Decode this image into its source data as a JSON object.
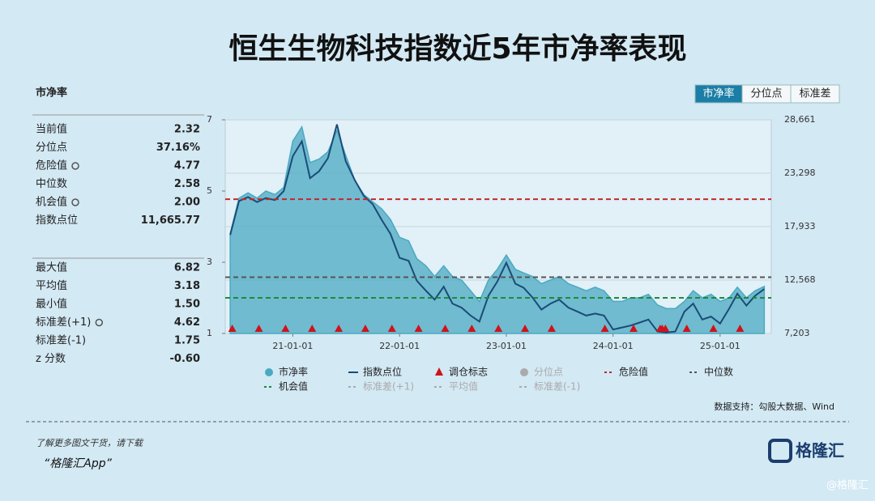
{
  "title": "恒生生物科技指数近5年市净率表现",
  "tabs": [
    {
      "label": "市净率",
      "active": true
    },
    {
      "label": "分位点",
      "active": false
    },
    {
      "label": "标准差",
      "active": false
    }
  ],
  "panel": {
    "title": "市净率",
    "groups": [
      [
        {
          "label": "当前值",
          "value": "2.32"
        },
        {
          "label": "分位点",
          "value": "37.16%"
        },
        {
          "label": "危险值",
          "value": "4.77",
          "icon": true
        },
        {
          "label": "中位数",
          "value": "2.58"
        },
        {
          "label": "机会值",
          "value": "2.00",
          "icon": true
        },
        {
          "label": "指数点位",
          "value": "11,665.77"
        }
      ],
      [
        {
          "label": "最大值",
          "value": "6.82"
        },
        {
          "label": "平均值",
          "value": "3.18"
        },
        {
          "label": "最小值",
          "value": "1.50"
        },
        {
          "label": "标准差(+1)",
          "value": "4.62",
          "icon": true
        },
        {
          "label": "标准差(-1)",
          "value": "1.75"
        },
        {
          "label": "z 分数",
          "value": "-0.60"
        }
      ]
    ]
  },
  "chart_data": {
    "type": "line",
    "x": [
      "20-06-01",
      "20-07-01",
      "20-08-01",
      "20-09-01",
      "20-10-01",
      "20-11-01",
      "20-12-01",
      "21-01-01",
      "21-02-01",
      "21-03-01",
      "21-04-01",
      "21-05-01",
      "21-06-01",
      "21-07-01",
      "21-08-01",
      "21-09-01",
      "21-10-01",
      "21-11-01",
      "21-12-01",
      "22-01-01",
      "22-02-01",
      "22-03-01",
      "22-04-01",
      "22-05-01",
      "22-06-01",
      "22-07-01",
      "22-08-01",
      "22-09-01",
      "22-10-01",
      "22-11-01",
      "22-12-01",
      "23-01-01",
      "23-02-01",
      "23-03-01",
      "23-04-01",
      "23-05-01",
      "23-06-01",
      "23-07-01",
      "23-08-01",
      "23-09-01",
      "23-10-01",
      "23-11-01",
      "23-12-01",
      "24-01-01",
      "24-02-01",
      "24-03-01",
      "24-04-01",
      "24-05-01",
      "24-06-01",
      "24-07-01",
      "24-08-01",
      "24-09-01",
      "24-10-01",
      "24-11-01",
      "24-12-01",
      "25-01-01",
      "25-02-01",
      "25-03-01",
      "25-04-01",
      "25-05-01",
      "25-06-01"
    ],
    "xlim": [
      "20-05-15",
      "25-06-25"
    ],
    "xticks": [
      "21-01-01",
      "22-01-01",
      "23-01-01",
      "24-01-01",
      "25-01-01"
    ],
    "ylim": [
      1,
      7
    ],
    "yticks": [
      1,
      3,
      5,
      7
    ],
    "y2lim": [
      7203,
      28661
    ],
    "y2ticks": [
      {
        "value": 7203,
        "label": "7,203"
      },
      {
        "value": 12568,
        "label": "12,568"
      },
      {
        "value": 17933,
        "label": "17,933"
      },
      {
        "value": 23298,
        "label": "23,298"
      },
      {
        "value": 28661,
        "label": "28,661"
      }
    ],
    "series": [
      {
        "name": "市净率",
        "kind": "area",
        "color": "#4aa9c2",
        "enabled": true,
        "values": [
          3.8,
          4.8,
          4.95,
          4.8,
          5.0,
          4.9,
          5.1,
          6.4,
          6.8,
          5.8,
          5.9,
          6.1,
          6.7,
          6.0,
          5.3,
          4.9,
          4.7,
          4.5,
          4.2,
          3.7,
          3.6,
          3.1,
          2.9,
          2.6,
          2.9,
          2.6,
          2.5,
          2.2,
          1.9,
          2.5,
          2.8,
          3.2,
          2.8,
          2.7,
          2.6,
          2.4,
          2.5,
          2.6,
          2.4,
          2.3,
          2.2,
          2.3,
          2.2,
          1.9,
          1.9,
          2.0,
          2.0,
          2.1,
          1.8,
          1.7,
          1.7,
          1.9,
          2.2,
          2.0,
          2.1,
          1.9,
          2.0,
          2.3,
          2.0,
          2.2,
          2.32
        ]
      },
      {
        "name": "指数点位",
        "kind": "line",
        "axis": "y2",
        "color": "#1b4b78",
        "enabled": true,
        "values": [
          17100,
          20500,
          20900,
          20400,
          20800,
          20600,
          21500,
          25000,
          26500,
          22800,
          23500,
          24800,
          28200,
          24500,
          22600,
          21000,
          20200,
          18600,
          17200,
          14800,
          14500,
          12500,
          11500,
          10600,
          11900,
          10200,
          9800,
          9000,
          8400,
          11000,
          12400,
          14300,
          12200,
          11800,
          10800,
          9600,
          10200,
          10600,
          9800,
          9400,
          9000,
          9200,
          9000,
          7600,
          7800,
          8000,
          8300,
          8600,
          7400,
          7300,
          7400,
          9400,
          10200,
          8600,
          8900,
          8200,
          9700,
          11200,
          10000,
          11000,
          11665.77
        ]
      },
      {
        "name": "调仓标志",
        "kind": "marker",
        "color": "#d0121b",
        "enabled": true,
        "x": [
          "20-06-08",
          "20-09-07",
          "20-12-07",
          "21-03-08",
          "21-06-07",
          "21-09-06",
          "21-12-06",
          "22-03-07",
          "22-06-06",
          "22-09-05",
          "22-12-05",
          "23-03-06",
          "23-06-05",
          "23-12-04",
          "24-03-11",
          "24-06-10",
          "24-06-17",
          "24-06-28",
          "24-09-09",
          "24-12-09",
          "25-03-10"
        ]
      },
      {
        "name": "分位点",
        "kind": "dot",
        "color": "#a8a8a8",
        "enabled": false
      },
      {
        "name": "危险值",
        "kind": "hline",
        "color": "#c0282d",
        "enabled": true,
        "value": 4.77
      },
      {
        "name": "中位数",
        "kind": "hline",
        "color": "#555555",
        "enabled": true,
        "value": 2.58
      },
      {
        "name": "机会值",
        "kind": "hline",
        "color": "#1e8a3c",
        "enabled": true,
        "value": 2
      },
      {
        "name": "标准差(+1)",
        "kind": "hline",
        "color": "#a8a8a8",
        "enabled": false
      },
      {
        "name": "平均值",
        "kind": "hline",
        "color": "#a8a8a8",
        "enabled": false
      },
      {
        "name": "标准差(-1)",
        "kind": "hline",
        "color": "#a8a8a8",
        "enabled": false
      }
    ],
    "source": "数据支持：勾股大数据、Wind"
  },
  "footer": {
    "note": "了解更多图文干货，请下载",
    "app": "“格隆汇App”",
    "logo": "格隆汇",
    "watermark": "@格隆汇"
  }
}
